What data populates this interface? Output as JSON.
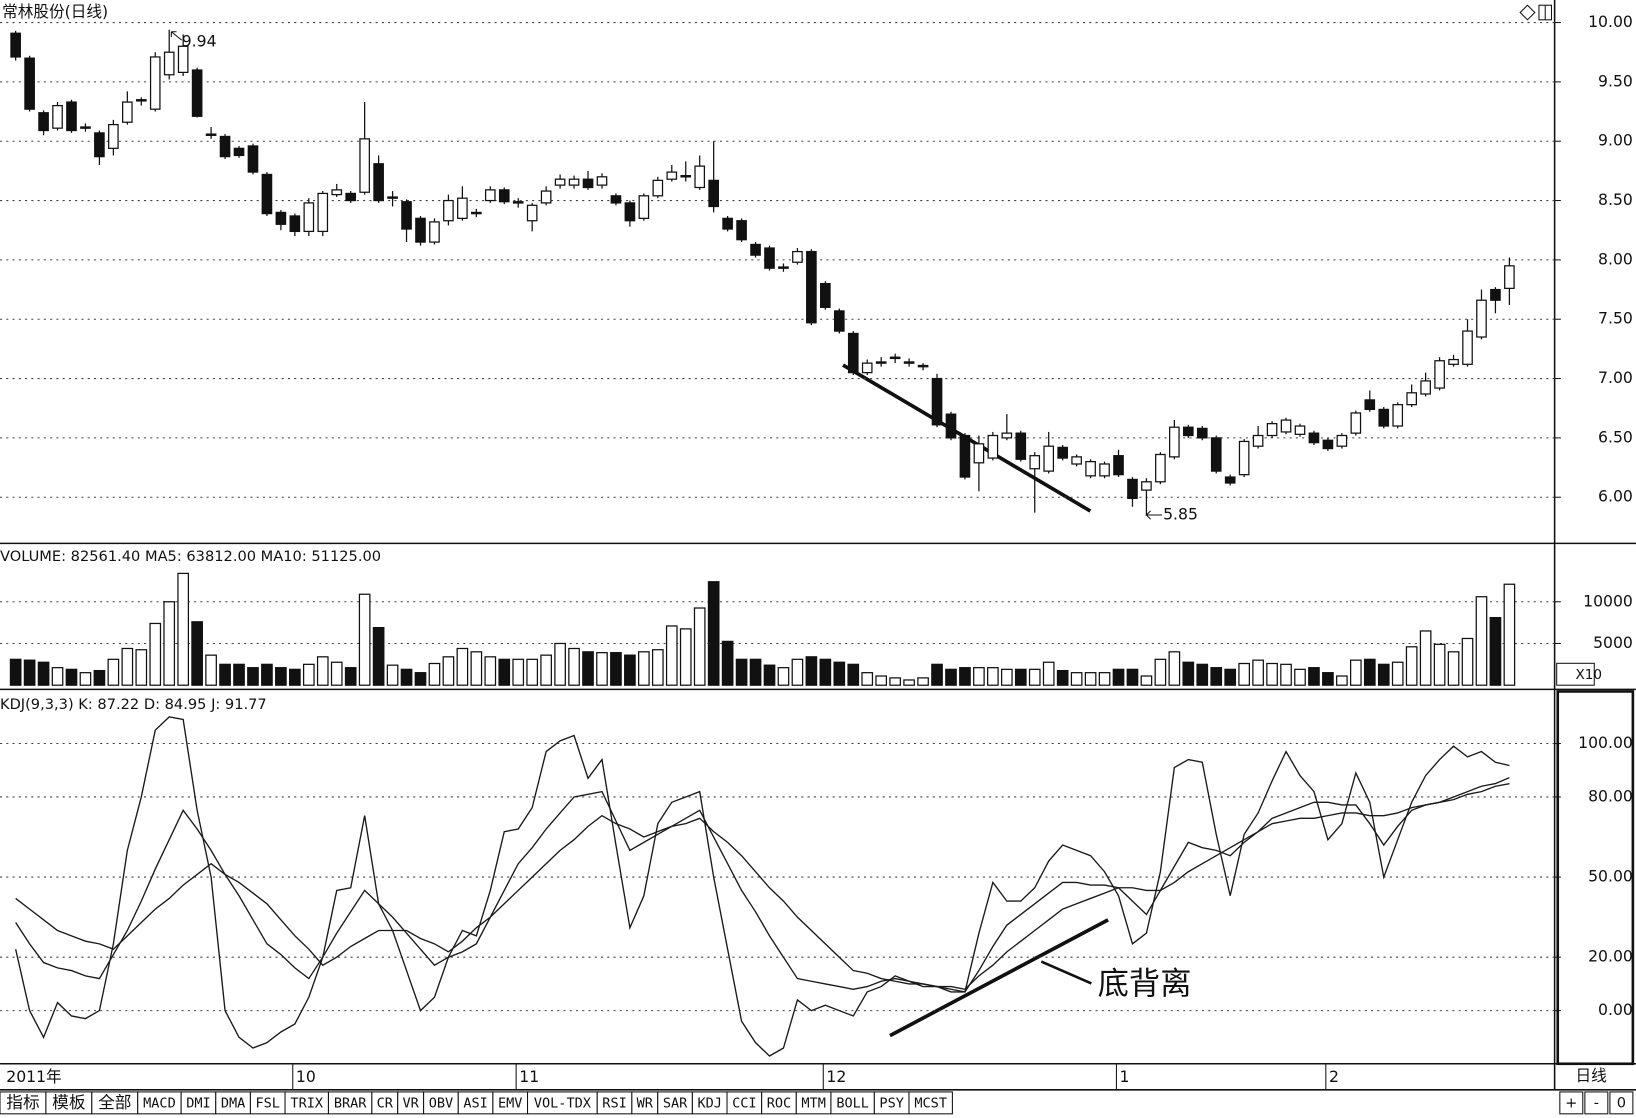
{
  "chart_data": [
    {
      "type": "candlestick",
      "title": "常林股份(日线)",
      "categories": [
        "2011年",
        null,
        null,
        null,
        null,
        null,
        null,
        null,
        null,
        null,
        null,
        null,
        null,
        null,
        null,
        null,
        null,
        null,
        null,
        null,
        "10",
        null,
        null,
        null,
        null,
        null,
        null,
        null,
        null,
        null,
        null,
        null,
        null,
        null,
        null,
        null,
        "11",
        null,
        null,
        null,
        null,
        null,
        null,
        null,
        null,
        null,
        null,
        null,
        null,
        null,
        null,
        null,
        null,
        null,
        null,
        null,
        null,
        null,
        "12",
        null,
        null,
        null,
        null,
        null,
        null,
        null,
        null,
        null,
        null,
        null,
        null,
        null,
        null,
        null,
        null,
        null,
        null,
        null,
        null,
        "1",
        null,
        null,
        null,
        null,
        null,
        null,
        null,
        null,
        null,
        null,
        null,
        null,
        null,
        null,
        "2",
        null,
        null,
        null,
        null,
        null,
        null,
        null,
        null,
        null,
        null,
        null,
        null,
        null
      ],
      "open": [
        9.91,
        9.7,
        9.24,
        9.11,
        9.33,
        9.12,
        9.07,
        8.94,
        9.16,
        9.34,
        9.27,
        9.56,
        9.58,
        9.6,
        9.05,
        9.04,
        8.94,
        8.96,
        8.72,
        8.4,
        8.37,
        8.24,
        8.24,
        8.55,
        8.56,
        8.57,
        8.81,
        8.52,
        8.49,
        8.35,
        8.15,
        8.33,
        8.35,
        8.39,
        8.5,
        8.59,
        8.48,
        8.33,
        8.48,
        8.63,
        8.63,
        8.68,
        8.63,
        8.54,
        8.48,
        8.35,
        8.54,
        8.68,
        8.7,
        8.61,
        8.67,
        8.35,
        8.33,
        8.13,
        8.1,
        7.93,
        7.98,
        8.07,
        7.8,
        7.57,
        7.38,
        7.05,
        7.13,
        7.17,
        7.13,
        7.1,
        7.0,
        6.7,
        6.52,
        6.29,
        6.33,
        6.5,
        6.54,
        6.24,
        6.22,
        6.42,
        6.28,
        6.18,
        6.18,
        6.35,
        6.15,
        6.06,
        6.13,
        6.34,
        6.59,
        6.58,
        6.5,
        6.17,
        6.19,
        6.43,
        6.52,
        6.55,
        6.53,
        6.54,
        6.48,
        6.43,
        6.54,
        6.82,
        6.74,
        6.6,
        6.78,
        6.87,
        6.92,
        7.12,
        7.12,
        7.35,
        7.75,
        7.76
      ],
      "high": [
        9.93,
        9.72,
        9.26,
        9.33,
        9.35,
        9.15,
        9.09,
        9.18,
        9.42,
        9.37,
        9.75,
        9.94,
        9.9,
        9.62,
        9.12,
        9.06,
        8.96,
        8.98,
        8.74,
        8.42,
        8.39,
        8.52,
        8.58,
        8.64,
        8.58,
        9.33,
        8.88,
        8.58,
        8.51,
        8.37,
        8.35,
        8.55,
        8.62,
        8.43,
        8.62,
        8.61,
        8.52,
        8.48,
        8.62,
        8.72,
        8.71,
        8.75,
        8.73,
        8.56,
        8.5,
        8.56,
        8.7,
        8.8,
        8.83,
        8.88,
        9.0,
        8.37,
        8.35,
        8.15,
        8.12,
        7.97,
        8.1,
        8.09,
        7.82,
        7.59,
        7.4,
        7.16,
        7.18,
        7.21,
        7.17,
        7.13,
        7.04,
        6.72,
        6.54,
        6.52,
        6.55,
        6.7,
        6.56,
        6.38,
        6.55,
        6.44,
        6.36,
        6.32,
        6.3,
        6.4,
        6.17,
        6.16,
        6.38,
        6.65,
        6.61,
        6.6,
        6.52,
        6.19,
        6.49,
        6.6,
        6.64,
        6.67,
        6.62,
        6.56,
        6.5,
        6.54,
        6.73,
        6.9,
        6.76,
        6.8,
        6.95,
        7.05,
        7.18,
        7.2,
        7.5,
        7.75,
        7.77,
        8.02
      ],
      "low": [
        9.68,
        9.25,
        9.05,
        9.09,
        9.07,
        9.08,
        8.8,
        8.88,
        9.14,
        9.3,
        9.25,
        9.52,
        9.55,
        9.2,
        9.02,
        8.85,
        8.86,
        8.72,
        8.37,
        8.25,
        8.2,
        8.2,
        8.2,
        8.53,
        8.48,
        8.55,
        8.48,
        8.45,
        8.15,
        8.12,
        8.13,
        8.29,
        8.33,
        8.36,
        8.48,
        8.47,
        8.44,
        8.24,
        8.46,
        8.6,
        8.6,
        8.59,
        8.6,
        8.46,
        8.28,
        8.33,
        8.52,
        8.66,
        8.66,
        8.59,
        8.4,
        8.24,
        8.15,
        8.02,
        7.91,
        7.9,
        7.96,
        7.45,
        7.58,
        7.38,
        7.03,
        7.03,
        7.1,
        7.13,
        7.1,
        7.07,
        6.59,
        6.48,
        6.15,
        6.05,
        6.31,
        6.48,
        6.3,
        5.87,
        6.2,
        6.31,
        6.26,
        6.16,
        6.16,
        6.17,
        5.92,
        5.85,
        6.11,
        6.32,
        6.5,
        6.48,
        6.2,
        6.1,
        6.17,
        6.41,
        6.5,
        6.53,
        6.51,
        6.44,
        6.39,
        6.41,
        6.52,
        6.72,
        6.58,
        6.58,
        6.76,
        6.85,
        6.9,
        7.1,
        7.1,
        7.33,
        7.55,
        7.62
      ],
      "close": [
        9.71,
        9.27,
        9.09,
        9.3,
        9.09,
        9.12,
        8.87,
        9.14,
        9.33,
        9.35,
        9.71,
        9.75,
        9.8,
        9.21,
        9.06,
        8.87,
        8.88,
        8.74,
        8.39,
        8.3,
        8.24,
        8.48,
        8.56,
        8.59,
        8.5,
        9.02,
        8.5,
        8.53,
        8.26,
        8.15,
        8.32,
        8.5,
        8.52,
        8.4,
        8.59,
        8.49,
        8.49,
        8.46,
        8.58,
        8.68,
        8.68,
        8.61,
        8.7,
        8.48,
        8.33,
        8.54,
        8.67,
        8.74,
        8.71,
        8.79,
        8.45,
        8.26,
        8.17,
        8.04,
        7.93,
        7.94,
        8.07,
        7.47,
        7.6,
        7.4,
        7.05,
        7.13,
        7.14,
        7.18,
        7.14,
        7.11,
        6.61,
        6.5,
        6.17,
        6.45,
        6.52,
        6.54,
        6.32,
        6.35,
        6.43,
        6.33,
        6.34,
        6.3,
        6.28,
        6.19,
        5.99,
        6.13,
        6.36,
        6.59,
        6.52,
        6.5,
        6.22,
        6.12,
        6.47,
        6.52,
        6.62,
        6.65,
        6.6,
        6.46,
        6.41,
        6.52,
        6.71,
        6.74,
        6.6,
        6.78,
        6.88,
        6.98,
        7.15,
        7.16,
        7.4,
        7.66,
        7.66,
        7.95
      ],
      "high_label": "9.94",
      "low_label": "5.85",
      "up_color": "#ffffff",
      "down_color": "#111111",
      "ylim": [
        5.62,
        10.19
      ],
      "yticks": [
        {
          "value": 6,
          "label": "6.00"
        },
        {
          "value": 6.5,
          "label": "6.50"
        },
        {
          "value": 7,
          "label": "7.00"
        },
        {
          "value": 7.5,
          "label": "7.50"
        },
        {
          "value": 8,
          "label": "8.00"
        },
        {
          "value": 8.5,
          "label": "8.50"
        },
        {
          "value": 9,
          "label": "9.00"
        },
        {
          "value": 9.5,
          "label": "9.50"
        },
        {
          "value": 10,
          "label": "10.00"
        }
      ],
      "grid": true
    },
    {
      "type": "bar",
      "title": "VOLUME: 82561.40 MA5: 63812.00 MA10: 51125.00",
      "scale_label": "X10",
      "values": [
        3100,
        3000,
        2750,
        2100,
        1900,
        1500,
        1750,
        3100,
        4400,
        4250,
        7400,
        10000,
        13400,
        7600,
        3600,
        2500,
        2500,
        2100,
        2500,
        2100,
        1900,
        2500,
        3400,
        2750,
        2100,
        10900,
        6900,
        2400,
        1900,
        1500,
        2600,
        3400,
        4400,
        4000,
        3400,
        3100,
        3100,
        3100,
        3600,
        5000,
        4400,
        4000,
        3900,
        3900,
        3600,
        4000,
        4250,
        7100,
        6750,
        9250,
        12400,
        5250,
        3100,
        3100,
        2400,
        2100,
        3100,
        3400,
        3100,
        2750,
        2500,
        1500,
        1100,
        875,
        625,
        875,
        2500,
        1900,
        2100,
        2100,
        2100,
        1900,
        1900,
        1900,
        2750,
        1750,
        1500,
        1500,
        1500,
        1900,
        1900,
        1100,
        3100,
        4000,
        2750,
        2500,
        2100,
        1900,
        2600,
        3000,
        2600,
        2500,
        1900,
        2100,
        1500,
        1100,
        3000,
        3100,
        2500,
        2750,
        4600,
        6500,
        4900,
        4000,
        5600,
        10600,
        8100,
        12100
      ],
      "ylim": [
        0,
        16875
      ],
      "yticks": [
        5000,
        10000
      ],
      "grid": true
    },
    {
      "type": "line",
      "title": "KDJ(9,3,3) K: 87.22 D: 84.95 J: 91.77",
      "annotation": "底背离",
      "series": [
        {
          "color": "#1a1a1a",
          "values": [
            33,
            25,
            18,
            16,
            15,
            13,
            12,
            21,
            30,
            41,
            53,
            64,
            75,
            68,
            60,
            51,
            43,
            34,
            25,
            21,
            16,
            12,
            20,
            29,
            37,
            45,
            40,
            35,
            29,
            23,
            17,
            20,
            22,
            25,
            35,
            45,
            55,
            61,
            68,
            74,
            80,
            81,
            82,
            71,
            60,
            63,
            66,
            69,
            72,
            75,
            65,
            55,
            45,
            37,
            28,
            20,
            12,
            11,
            10,
            9,
            8,
            9,
            11,
            12,
            11,
            10,
            9,
            8,
            7,
            15,
            24,
            32,
            36,
            40,
            44,
            48,
            48,
            47,
            47,
            46,
            41,
            36,
            45,
            54,
            63,
            61,
            60,
            58,
            63,
            67,
            72,
            74,
            76,
            78,
            78,
            77,
            77,
            70,
            62,
            69,
            75,
            77,
            78,
            80,
            82,
            84,
            85,
            87.22
          ]
        },
        {
          "color": "#1a1a1a",
          "values": [
            42,
            38,
            34,
            30,
            28,
            26,
            25,
            23,
            28,
            33,
            38,
            42,
            47,
            51,
            55,
            51,
            48,
            44,
            40,
            34,
            28,
            23,
            17,
            20,
            24,
            27,
            30,
            30,
            30,
            27,
            25,
            22,
            26,
            31,
            35,
            40,
            45,
            50,
            55,
            60,
            64,
            69,
            73,
            70,
            68,
            65,
            67,
            69,
            70,
            72,
            67,
            63,
            58,
            52,
            46,
            41,
            35,
            30,
            25,
            20,
            15,
            14,
            12,
            11,
            10,
            10,
            9,
            9,
            8,
            13,
            17,
            22,
            26,
            30,
            34,
            38,
            40,
            42,
            44,
            46,
            46,
            45,
            45,
            48,
            52,
            55,
            58,
            61,
            64,
            67,
            70,
            71,
            72,
            72,
            73,
            74,
            74,
            73,
            73,
            74,
            76,
            77,
            78,
            79,
            81,
            82,
            84,
            84.95
          ]
        },
        {
          "color": "#1a1a1a",
          "values": [
            23,
            0,
            -10,
            3,
            -2,
            -3,
            0,
            25,
            60,
            80,
            105,
            110,
            109,
            75,
            50,
            0,
            -10,
            -14,
            -12,
            -8,
            -5,
            5,
            20,
            45,
            46,
            73,
            40,
            30,
            15,
            0,
            5,
            20,
            30,
            28,
            45,
            67,
            68,
            76,
            97,
            101,
            103,
            87,
            94,
            62,
            31,
            43,
            70,
            78,
            80,
            82,
            50,
            23,
            -4,
            -12,
            -17,
            -14,
            4,
            0,
            2,
            0,
            -2,
            7,
            9,
            13,
            11,
            9,
            9,
            7,
            7,
            29,
            48,
            41,
            41,
            46,
            56,
            62,
            60,
            58,
            52,
            43,
            25,
            29,
            52,
            91,
            94,
            93,
            66,
            43,
            66,
            74,
            86,
            97,
            88,
            82,
            64,
            70,
            89,
            78,
            50,
            64,
            78,
            88,
            94,
            99,
            95,
            97,
            93,
            91.77
          ]
        }
      ],
      "ylim": [
        -19.9,
        119.5
      ],
      "yticks": [
        {
          "value": 0,
          "label": "0.00"
        },
        {
          "value": 20,
          "label": "20.00"
        },
        {
          "value": 50,
          "label": "50.00"
        },
        {
          "value": 80,
          "label": "80.00"
        },
        {
          "value": 100,
          "label": "100.00"
        }
      ],
      "grid": true
    }
  ],
  "period_label": "日线",
  "tabs": [
    "指标",
    "模板",
    "全部",
    "MACD",
    "DMI",
    "DMA",
    "FSL",
    "TRIX",
    "BRAR",
    "CR",
    "VR",
    "OBV",
    "ASI",
    "EMV",
    "VOL-TDX",
    "RSI",
    "WR",
    "SAR",
    "KDJ",
    "CCI",
    "ROC",
    "MTM",
    "BOLL",
    "PSY",
    "MCST"
  ],
  "zoom_buttons": [
    "+",
    "-",
    "0"
  ]
}
